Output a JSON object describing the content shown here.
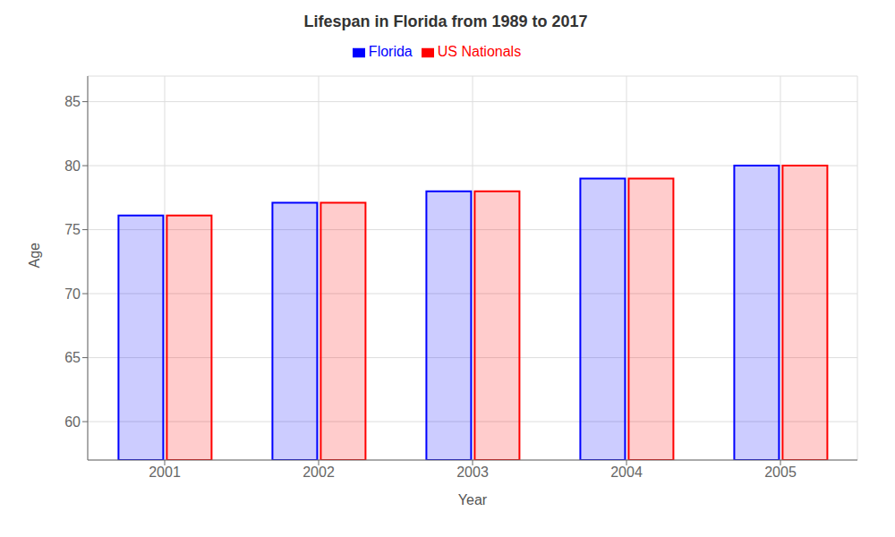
{
  "chart_data": {
    "type": "bar",
    "title": "Lifespan in Florida from 1989 to 2017",
    "x_label": "Year",
    "y_label": "Age",
    "categories": [
      "2001",
      "2002",
      "2003",
      "2004",
      "2005"
    ],
    "series": [
      {
        "name": "Florida",
        "color": "#0000ff",
        "values": [
          76.1,
          77.1,
          78.0,
          79.0,
          80.0
        ]
      },
      {
        "name": "US Nationals",
        "color": "#ff0000",
        "values": [
          76.1,
          77.1,
          78.0,
          79.0,
          80.0
        ]
      }
    ],
    "ylim": [
      57,
      87
    ],
    "yticks": [
      60,
      65,
      70,
      75,
      80,
      85
    ],
    "grid": true,
    "legend": "top"
  }
}
